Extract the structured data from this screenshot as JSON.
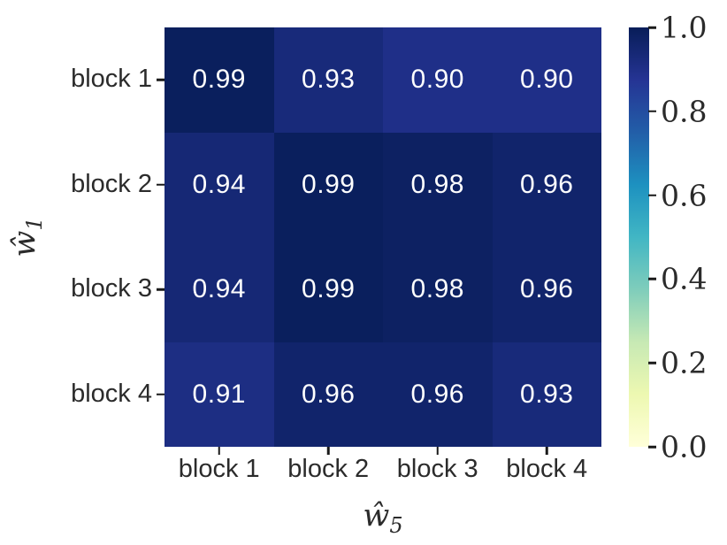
{
  "figure": {
    "background": "#ffffff",
    "label_color": "#2b2b2b",
    "tick_color": "#1a1a1a"
  },
  "chart_data": {
    "type": "heatmap",
    "title": "",
    "x_categories": [
      "block 1",
      "block 2",
      "block 3",
      "block 4"
    ],
    "y_categories": [
      "block 1",
      "block 2",
      "block 3",
      "block 4"
    ],
    "xlabel": {
      "base": "ŵ",
      "sub": "5"
    },
    "ylabel": {
      "base": "ŵ",
      "sub": "1"
    },
    "values": [
      [
        0.99,
        0.93,
        0.9,
        0.9
      ],
      [
        0.94,
        0.99,
        0.98,
        0.96
      ],
      [
        0.94,
        0.99,
        0.98,
        0.96
      ],
      [
        0.91,
        0.96,
        0.96,
        0.93
      ]
    ],
    "value_decimals": 2,
    "annotation_color": "#ffffff",
    "vmin": 0.0,
    "vmax": 1.0,
    "colormap": {
      "name": "YlGnBu",
      "stops": [
        "#ffffd9",
        "#edf8b1",
        "#c7e9b4",
        "#7fcdbb",
        "#41b6c4",
        "#1d91c0",
        "#225ea8",
        "#253494",
        "#081d58"
      ]
    },
    "colorbar": {
      "ticks": [
        1.0,
        0.8,
        0.6,
        0.4,
        0.2,
        0.0
      ],
      "tick_labels": [
        "1.0",
        "0.8",
        "0.6",
        "0.4",
        "0.2",
        "0.0"
      ],
      "position": "right"
    },
    "grid": false,
    "legend": false
  }
}
